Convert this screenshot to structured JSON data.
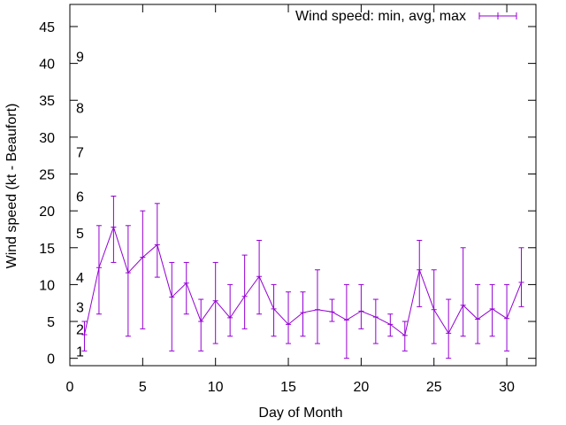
{
  "chart_data": {
    "type": "line",
    "title": "",
    "xlabel": "Day of Month",
    "ylabel": "Wind speed (kt - Beaufort)",
    "xlim": [
      0,
      32
    ],
    "ylim": [
      -1,
      48
    ],
    "xticks": [
      0,
      5,
      10,
      15,
      20,
      25,
      30
    ],
    "yticks": [
      0,
      5,
      10,
      15,
      20,
      25,
      30,
      35,
      40,
      45
    ],
    "grid": false,
    "legend": {
      "label": "Wind speed: min, avg, max",
      "position": "top-right"
    },
    "series_color": "#9400d3",
    "series": [
      {
        "name": "Wind speed: min, avg, max",
        "points": [
          {
            "day": 1,
            "min": 1,
            "avg": 3.2,
            "max": 5
          },
          {
            "day": 2,
            "min": 6,
            "avg": 12.3,
            "max": 18
          },
          {
            "day": 3,
            "min": 13,
            "avg": 17.8,
            "max": 22
          },
          {
            "day": 4,
            "min": 3,
            "avg": 11.6,
            "max": 18
          },
          {
            "day": 5,
            "min": 4,
            "avg": 13.7,
            "max": 20
          },
          {
            "day": 6,
            "min": 11,
            "avg": 15.4,
            "max": 21
          },
          {
            "day": 7,
            "min": 1,
            "avg": 8.3,
            "max": 13
          },
          {
            "day": 8,
            "min": 6,
            "avg": 10.2,
            "max": 13
          },
          {
            "day": 9,
            "min": 1,
            "avg": 5.0,
            "max": 8
          },
          {
            "day": 10,
            "min": 2,
            "avg": 7.8,
            "max": 13
          },
          {
            "day": 11,
            "min": 3,
            "avg": 5.5,
            "max": 10
          },
          {
            "day": 12,
            "min": 4,
            "avg": 8.4,
            "max": 14
          },
          {
            "day": 13,
            "min": 6,
            "avg": 11.1,
            "max": 16
          },
          {
            "day": 14,
            "min": 3,
            "avg": 6.7,
            "max": 10
          },
          {
            "day": 15,
            "min": 2,
            "avg": 4.6,
            "max": 9
          },
          {
            "day": 16,
            "min": 3,
            "avg": 6.2,
            "max": 9
          },
          {
            "day": 17,
            "min": 2,
            "avg": 6.6,
            "max": 12
          },
          {
            "day": 18,
            "min": 5,
            "avg": 6.3,
            "max": 8
          },
          {
            "day": 19,
            "min": 0,
            "avg": 5.2,
            "max": 10
          },
          {
            "day": 20,
            "min": 4,
            "avg": 6.4,
            "max": 10
          },
          {
            "day": 21,
            "min": 2,
            "avg": 5.6,
            "max": 8
          },
          {
            "day": 22,
            "min": 3,
            "avg": 4.6,
            "max": 6
          },
          {
            "day": 23,
            "min": 1,
            "avg": 3.1,
            "max": 5
          },
          {
            "day": 24,
            "min": 7,
            "avg": 12.0,
            "max": 16
          },
          {
            "day": 25,
            "min": 2,
            "avg": 6.6,
            "max": 12
          },
          {
            "day": 26,
            "min": 0,
            "avg": 3.4,
            "max": 8
          },
          {
            "day": 27,
            "min": 3,
            "avg": 7.2,
            "max": 15
          },
          {
            "day": 28,
            "min": 2,
            "avg": 5.3,
            "max": 10
          },
          {
            "day": 29,
            "min": 3,
            "avg": 6.7,
            "max": 10
          },
          {
            "day": 30,
            "min": 1,
            "avg": 5.4,
            "max": 10
          },
          {
            "day": 31,
            "min": 7,
            "avg": 10.3,
            "max": 15
          }
        ]
      }
    ],
    "beaufort_labels": [
      {
        "label": "1",
        "y": 1.0
      },
      {
        "label": "2",
        "y": 4.0
      },
      {
        "label": "3",
        "y": 7.0
      },
      {
        "label": "4",
        "y": 11.0
      },
      {
        "label": "5",
        "y": 17.0
      },
      {
        "label": "6",
        "y": 22.0
      },
      {
        "label": "7",
        "y": 28.0
      },
      {
        "label": "8",
        "y": 34.0
      },
      {
        "label": "9",
        "y": 41.0
      }
    ]
  }
}
